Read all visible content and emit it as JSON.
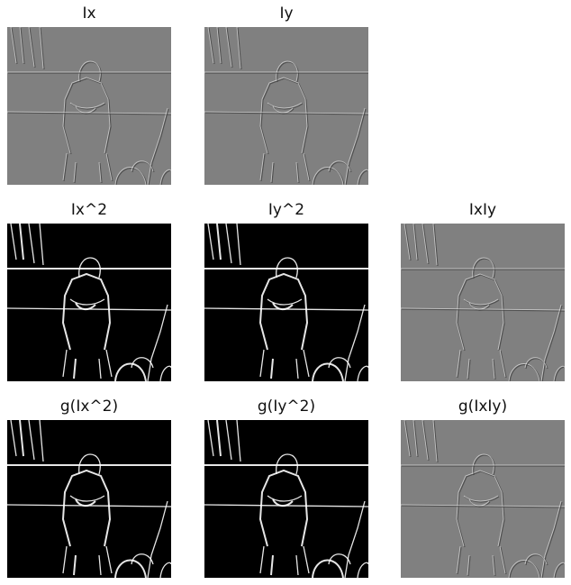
{
  "panels": [
    {
      "title": "Ix",
      "style": "gray"
    },
    {
      "title": "Iy",
      "style": "gray"
    },
    {
      "title": "Ix^2",
      "style": "dark"
    },
    {
      "title": "Iy^2",
      "style": "dark"
    },
    {
      "title": "IxIy",
      "style": "gray"
    },
    {
      "title": "g(Ix^2)",
      "style": "dark"
    },
    {
      "title": "g(Iy^2)",
      "style": "dark"
    },
    {
      "title": "g(IxIy)",
      "style": "gray"
    }
  ],
  "colors": {
    "gray_bg": "#808080",
    "dark_bg": "#000000",
    "edge_light": "#ffffff",
    "edge_dark": "#3a3a3a"
  }
}
